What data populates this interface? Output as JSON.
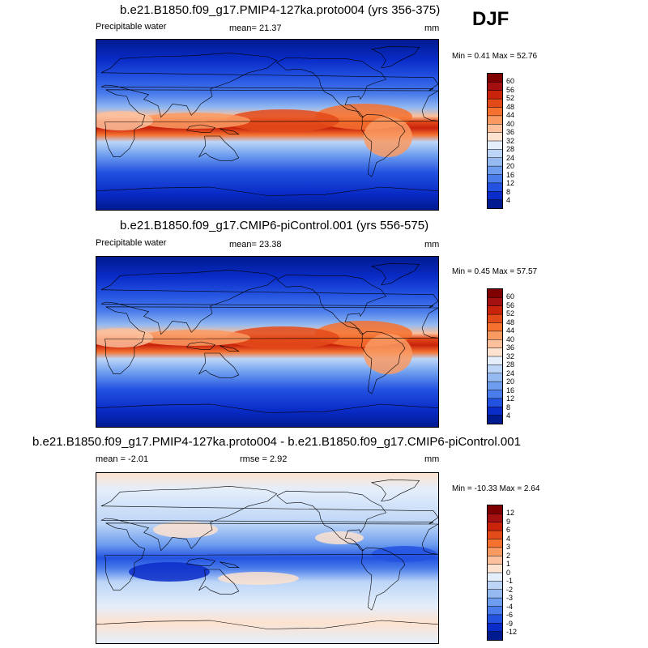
{
  "season": "DJF",
  "panels": [
    {
      "title": "b.e21.B1850.f09_g17.PMIP4-127ka.proto004 (yrs 356-375)",
      "left_label": "Precipitable water",
      "center_label": "mean=  21.37",
      "units": "mm",
      "minmax": "Min =   0.41 Max =  52.76",
      "colorbar": {
        "levels": [
          "60",
          "56",
          "52",
          "48",
          "44",
          "40",
          "36",
          "32",
          "28",
          "24",
          "20",
          "16",
          "12",
          "8",
          "4"
        ],
        "colors": [
          "#7f0000",
          "#a40f0f",
          "#c9230c",
          "#e34a1a",
          "#f4712f",
          "#f99a63",
          "#fcc09c",
          "#fde2cf",
          "#e4eefb",
          "#bcd5f7",
          "#94baf1",
          "#6e9def",
          "#4a7ceb",
          "#2352e1",
          "#0a2cc8",
          "#001a90"
        ]
      }
    },
    {
      "title": "b.e21.B1850.f09_g17.CMIP6-piControl.001 (yrs 556-575)",
      "left_label": "Precipitable water",
      "center_label": "mean=  23.38",
      "units": "mm",
      "minmax": "Min =   0.45 Max =  57.57",
      "colorbar": {
        "levels": [
          "60",
          "56",
          "52",
          "48",
          "44",
          "40",
          "36",
          "32",
          "28",
          "24",
          "20",
          "16",
          "12",
          "8",
          "4"
        ],
        "colors": [
          "#7f0000",
          "#a40f0f",
          "#c9230c",
          "#e34a1a",
          "#f4712f",
          "#f99a63",
          "#fcc09c",
          "#fde2cf",
          "#e4eefb",
          "#bcd5f7",
          "#94baf1",
          "#6e9def",
          "#4a7ceb",
          "#2352e1",
          "#0a2cc8",
          "#001a90"
        ]
      }
    },
    {
      "title": "b.e21.B1850.f09_g17.PMIP4-127ka.proto004 - b.e21.B1850.f09_g17.CMIP6-piControl.001",
      "left_label": "mean =  -2.01",
      "center_label": "rmse =   2.92",
      "units": "mm",
      "minmax": "Min = -10.33 Max =   2.64",
      "colorbar": {
        "levels": [
          "12",
          "9",
          "6",
          "4",
          "3",
          "2",
          "1",
          "0",
          "-1",
          "-2",
          "-3",
          "-4",
          "-6",
          "-9",
          "-12"
        ],
        "colors": [
          "#7f0000",
          "#a40f0f",
          "#c9230c",
          "#e34a1a",
          "#f4712f",
          "#f99a63",
          "#fcc09c",
          "#fde2cf",
          "#e4eefb",
          "#bcd5f7",
          "#94baf1",
          "#6e9def",
          "#4a7ceb",
          "#2352e1",
          "#0a2cc8",
          "#001a90"
        ]
      }
    }
  ],
  "chart_data": [
    {
      "type": "heatmap",
      "title": "b.e21.B1850.f09_g17.PMIP4-127ka.proto004 (yrs 356-375)",
      "variable": "Precipitable water",
      "units": "mm",
      "mean": 21.37,
      "min": 0.41,
      "max": 52.76,
      "contour_levels": [
        4,
        8,
        12,
        16,
        20,
        24,
        28,
        32,
        36,
        40,
        44,
        48,
        52,
        56,
        60
      ]
    },
    {
      "type": "heatmap",
      "title": "b.e21.B1850.f09_g17.CMIP6-piControl.001 (yrs 556-575)",
      "variable": "Precipitable water",
      "units": "mm",
      "mean": 23.38,
      "min": 0.45,
      "max": 57.57,
      "contour_levels": [
        4,
        8,
        12,
        16,
        20,
        24,
        28,
        32,
        36,
        40,
        44,
        48,
        52,
        56,
        60
      ]
    },
    {
      "type": "heatmap",
      "title": "b.e21.B1850.f09_g17.PMIP4-127ka.proto004 - b.e21.B1850.f09_g17.CMIP6-piControl.001",
      "units": "mm",
      "mean": -2.01,
      "rmse": 2.92,
      "min": -10.33,
      "max": 2.64,
      "contour_levels": [
        -12,
        -9,
        -6,
        -4,
        -3,
        -2,
        -1,
        0,
        1,
        2,
        3,
        4,
        6,
        9,
        12
      ]
    }
  ]
}
